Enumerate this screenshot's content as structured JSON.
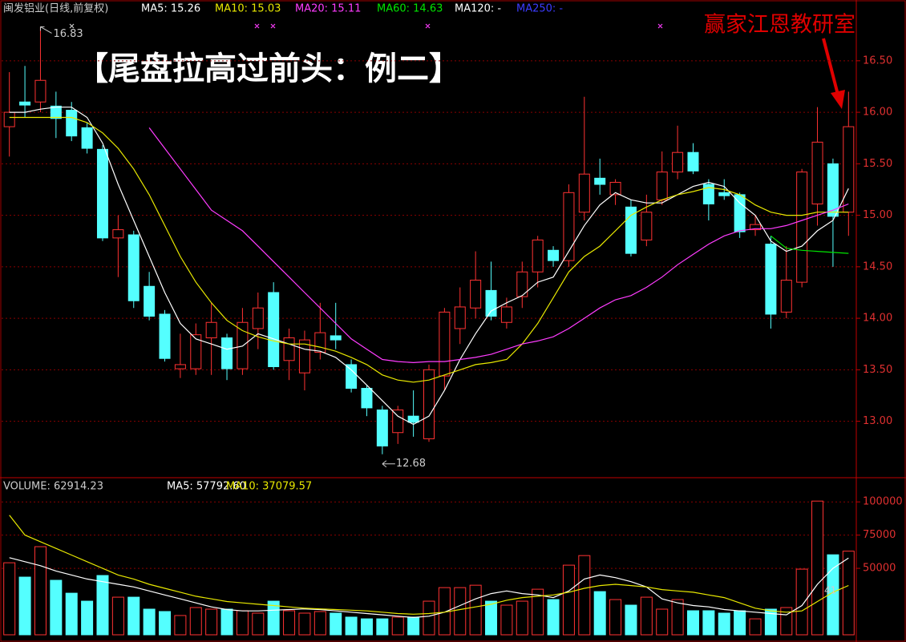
{
  "chart_data": [
    {
      "type": "candlestick",
      "title": "闽发铝业(日线,前复权)",
      "annotation": "【尾盘拉高过前头：例二】",
      "watermark": "赢家江恩教研室",
      "up_color": "#ff3232",
      "down_color": "#54ffff",
      "open": [
        15.86,
        16.1,
        16.1,
        16.06,
        16.02,
        15.85,
        15.64,
        14.78,
        14.81,
        14.31,
        14.04,
        13.51,
        13.51,
        13.81,
        13.81,
        13.51,
        13.9,
        14.25,
        13.59,
        13.47,
        13.67,
        13.83,
        13.55,
        13.32,
        13.11,
        12.89,
        13.05,
        12.83,
        13.44,
        13.9,
        14.1,
        14.27,
        13.96,
        14.21,
        14.45,
        14.66,
        14.56,
        15.03,
        15.36,
        15.2,
        15.08,
        14.76,
        15.15,
        15.42,
        15.61,
        15.3,
        15.22,
        15.2,
        14.86,
        14.72,
        14.06,
        14.35,
        15.11,
        15.5,
        15.03
      ],
      "high": [
        16.39,
        16.45,
        16.83,
        16.2,
        16.1,
        15.9,
        15.68,
        15.0,
        14.85,
        14.45,
        14.08,
        13.85,
        13.95,
        14.15,
        13.85,
        14.1,
        14.25,
        14.35,
        13.9,
        13.88,
        14.15,
        14.15,
        13.6,
        13.35,
        13.15,
        13.15,
        13.3,
        13.55,
        14.1,
        14.3,
        14.65,
        14.55,
        14.2,
        14.55,
        14.8,
        14.7,
        15.3,
        16.15,
        15.55,
        15.35,
        15.15,
        15.2,
        15.62,
        15.87,
        15.7,
        15.35,
        15.35,
        15.22,
        15.0,
        14.8,
        14.7,
        15.45,
        16.05,
        15.55,
        16.2
      ],
      "low": [
        15.57,
        15.95,
        16.0,
        15.75,
        15.72,
        15.6,
        14.75,
        14.4,
        14.1,
        13.98,
        13.58,
        13.42,
        13.45,
        13.45,
        13.4,
        13.45,
        13.7,
        13.5,
        13.4,
        13.3,
        13.6,
        13.7,
        13.28,
        13.05,
        12.68,
        12.78,
        12.85,
        12.8,
        13.3,
        13.75,
        14.0,
        13.98,
        13.9,
        14.1,
        14.3,
        14.5,
        14.5,
        14.95,
        15.2,
        15.1,
        14.6,
        14.7,
        15.1,
        15.35,
        15.4,
        14.95,
        15.15,
        14.78,
        14.8,
        13.9,
        14.0,
        14.3,
        14.9,
        14.5,
        14.8
      ],
      "close": [
        16.0,
        16.07,
        16.31,
        15.94,
        15.77,
        15.65,
        14.78,
        14.86,
        14.17,
        14.02,
        13.61,
        13.55,
        13.84,
        13.96,
        13.51,
        13.96,
        14.1,
        13.53,
        13.81,
        13.79,
        13.86,
        13.79,
        13.32,
        13.13,
        12.76,
        13.11,
        12.99,
        13.5,
        14.06,
        14.11,
        14.37,
        14.02,
        14.11,
        14.45,
        14.76,
        14.56,
        15.22,
        15.4,
        15.3,
        15.32,
        14.63,
        15.03,
        15.42,
        15.61,
        15.43,
        15.11,
        15.19,
        14.84,
        14.91,
        14.04,
        14.37,
        15.42,
        15.71,
        14.99,
        15.86
      ],
      "high_label": 16.83,
      "low_label": 12.68,
      "series": [
        {
          "name": "MA5: 15.26",
          "color": "#ffffff",
          "values": [
            16.0,
            16.0,
            16.03,
            16.05,
            16.05,
            15.95,
            15.7,
            15.3,
            14.95,
            14.6,
            14.25,
            13.95,
            13.8,
            13.75,
            13.7,
            13.73,
            13.85,
            13.8,
            13.75,
            13.7,
            13.68,
            13.62,
            13.5,
            13.35,
            13.2,
            13.05,
            12.97,
            13.05,
            13.3,
            13.6,
            13.85,
            14.07,
            14.15,
            14.22,
            14.35,
            14.4,
            14.65,
            14.9,
            15.1,
            15.22,
            15.15,
            15.12,
            15.12,
            15.2,
            15.28,
            15.32,
            15.28,
            15.12,
            15.0,
            14.75,
            14.65,
            14.7,
            14.85,
            14.95,
            15.26
          ]
        },
        {
          "name": "MA10: 15.03",
          "color": "#e8e800",
          "values": [
            15.95,
            15.95,
            15.95,
            15.95,
            15.95,
            15.9,
            15.8,
            15.65,
            15.45,
            15.2,
            14.9,
            14.6,
            14.35,
            14.15,
            13.98,
            13.88,
            13.82,
            13.78,
            13.75,
            13.75,
            13.72,
            13.68,
            13.62,
            13.55,
            13.45,
            13.4,
            13.38,
            13.4,
            13.45,
            13.5,
            13.55,
            13.57,
            13.6,
            13.75,
            13.95,
            14.2,
            14.45,
            14.6,
            14.7,
            14.85,
            15.0,
            15.08,
            15.15,
            15.2,
            15.23,
            15.27,
            15.25,
            15.2,
            15.1,
            15.03,
            15.0,
            15.0,
            15.03,
            15.03,
            15.03
          ]
        },
        {
          "name": "MA20: 15.11",
          "color": "#ff3cff",
          "values": [
            null,
            null,
            null,
            null,
            null,
            null,
            null,
            null,
            null,
            15.85,
            15.65,
            15.45,
            15.25,
            15.05,
            14.95,
            14.85,
            14.7,
            14.55,
            14.4,
            14.25,
            14.1,
            13.95,
            13.8,
            13.7,
            13.6,
            13.58,
            13.57,
            13.58,
            13.58,
            13.6,
            13.62,
            13.65,
            13.7,
            13.75,
            13.78,
            13.82,
            13.9,
            14.0,
            14.1,
            14.18,
            14.22,
            14.3,
            14.4,
            14.52,
            14.62,
            14.72,
            14.8,
            14.85,
            14.87,
            14.87,
            14.9,
            14.95,
            15.0,
            15.05,
            15.11
          ]
        },
        {
          "name": "MA60: 14.63",
          "color": "#00e600",
          "values": [
            null,
            null,
            null,
            null,
            null,
            null,
            null,
            null,
            null,
            null,
            null,
            null,
            null,
            null,
            null,
            null,
            null,
            null,
            null,
            null,
            null,
            null,
            null,
            null,
            null,
            null,
            null,
            null,
            null,
            null,
            null,
            null,
            null,
            null,
            null,
            null,
            null,
            null,
            null,
            null,
            null,
            null,
            null,
            null,
            null,
            null,
            null,
            null,
            null,
            14.8,
            14.68,
            14.66,
            14.65,
            14.64,
            14.63
          ]
        }
      ],
      "legend_only": [
        {
          "name": "MA120: -",
          "color": "#ffffff"
        },
        {
          "name": "MA250: -",
          "color": "#3c3cff"
        }
      ],
      "ylim": [
        12.46,
        16.95
      ],
      "yticks": [
        {
          "value": 13,
          "label": "13.00"
        },
        {
          "value": 13.5,
          "label": "13.50"
        },
        {
          "value": 14,
          "label": "14.00"
        },
        {
          "value": 14.5,
          "label": "14.50"
        },
        {
          "value": 15,
          "label": "15.00"
        },
        {
          "value": 15.5,
          "label": "15.50"
        },
        {
          "value": 16,
          "label": "16.00"
        },
        {
          "value": 16.5,
          "label": "16.50"
        }
      ],
      "grid": true
    },
    {
      "type": "bar",
      "title": "VOLUME: 62914.23",
      "values": [
        54200,
        43400,
        66300,
        41000,
        31300,
        25300,
        44600,
        28300,
        28300,
        19300,
        17500,
        14500,
        20500,
        19300,
        19300,
        18100,
        16300,
        25300,
        18100,
        16300,
        17500,
        16300,
        13300,
        12000,
        12000,
        13300,
        13300,
        25300,
        35500,
        35500,
        37300,
        25300,
        22300,
        25300,
        34300,
        26500,
        52400,
        59600,
        32500,
        26500,
        22300,
        28300,
        19300,
        26500,
        18100,
        18100,
        16300,
        18100,
        12000,
        19300,
        20500,
        49400,
        100600,
        60200,
        62914.23
      ],
      "series": [
        {
          "name": "MA5: 57792.60",
          "color": "#ffffff",
          "values": [
            58000,
            55000,
            52000,
            48000,
            45000,
            42000,
            40000,
            38000,
            36000,
            33000,
            30000,
            27000,
            24000,
            21000,
            19000,
            18000,
            18000,
            18500,
            19000,
            19500,
            19000,
            18000,
            17000,
            16000,
            15000,
            14000,
            13000,
            14000,
            17000,
            22000,
            27000,
            31000,
            33000,
            31000,
            30000,
            28000,
            33000,
            42000,
            45000,
            43000,
            40000,
            36000,
            27000,
            24000,
            22000,
            21000,
            19000,
            18000,
            17000,
            16000,
            15000,
            22000,
            38000,
            50000,
            57792.6
          ]
        },
        {
          "name": "MA10: 37079.57",
          "color": "#e8e800",
          "values": [
            90000,
            75000,
            70000,
            65000,
            60000,
            55000,
            50000,
            45000,
            42000,
            38000,
            35000,
            32000,
            29000,
            27000,
            25000,
            24000,
            23000,
            22000,
            21000,
            20000,
            19500,
            19000,
            18500,
            18000,
            17000,
            16000,
            15500,
            16000,
            17000,
            19000,
            21000,
            23000,
            26000,
            28000,
            29000,
            30000,
            32000,
            35000,
            37000,
            38000,
            37000,
            36000,
            34000,
            33000,
            32000,
            30000,
            28000,
            24000,
            20000,
            18000,
            17000,
            18000,
            25000,
            32000,
            37079.57
          ]
        }
      ],
      "marker_label": 41,
      "ylim": [
        0,
        117000
      ],
      "yticks": [
        50000,
        75000,
        100000
      ],
      "grid": true
    }
  ]
}
